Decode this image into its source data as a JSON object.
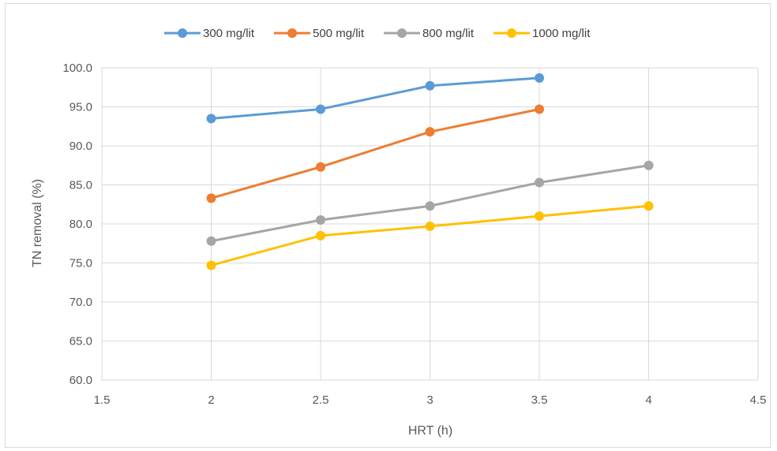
{
  "chart_data": {
    "type": "scatter",
    "title": "",
    "xlabel": "HRT (h)",
    "ylabel": "TN removal (%)",
    "xlim": [
      1.5,
      4.5
    ],
    "ylim": [
      60,
      100
    ],
    "x_ticks": [
      "1.5",
      "2",
      "2.5",
      "3",
      "3.5",
      "4",
      "4.5"
    ],
    "y_ticks": [
      "60.0",
      "65.0",
      "70.0",
      "75.0",
      "80.0",
      "85.0",
      "90.0",
      "95.0",
      "100.0"
    ],
    "grid": true,
    "legend_position": "top",
    "series": [
      {
        "name": "300 mg/lit",
        "color": "#5b9bd5",
        "x": [
          2,
          2.5,
          3,
          3.5
        ],
        "y": [
          93.5,
          94.7,
          97.7,
          98.7
        ]
      },
      {
        "name": "500 mg/lit",
        "color": "#ed7d31",
        "x": [
          2,
          2.5,
          3,
          3.5
        ],
        "y": [
          83.3,
          87.3,
          91.8,
          94.7
        ]
      },
      {
        "name": "800 mg/lit",
        "color": "#a5a5a5",
        "x": [
          2,
          2.5,
          3,
          3.5,
          4
        ],
        "y": [
          77.8,
          80.5,
          82.3,
          85.3,
          87.5
        ]
      },
      {
        "name": "1000 mg/lit",
        "color": "#ffc000",
        "x": [
          2,
          2.5,
          3,
          3.5,
          4
        ],
        "y": [
          74.7,
          78.5,
          79.7,
          81.0,
          82.3
        ]
      }
    ]
  }
}
